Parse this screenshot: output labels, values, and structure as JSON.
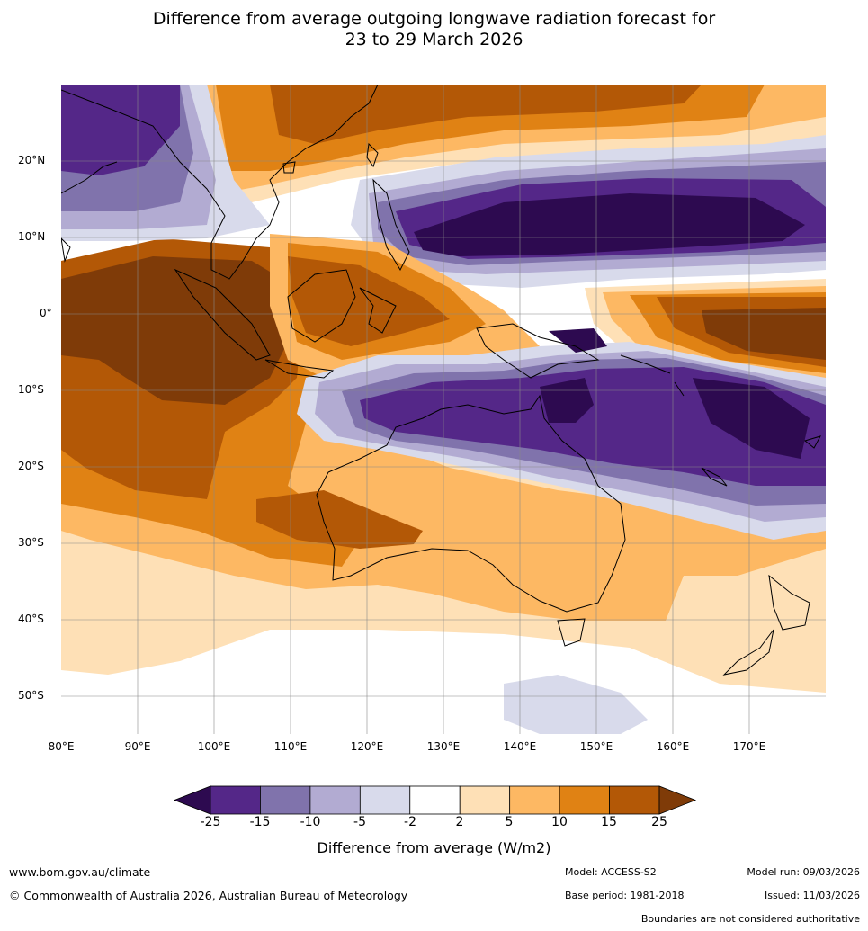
{
  "title_line1": "Difference from average outgoing longwave radiation forecast for",
  "title_line2": "23 to 29 March 2026",
  "map": {
    "lon_labels": [
      "80°E",
      "90°E",
      "100°E",
      "110°E",
      "120°E",
      "130°E",
      "140°E",
      "150°E",
      "160°E",
      "170°E"
    ],
    "lat_labels": [
      "20°N",
      "10°N",
      "0°",
      "10°S",
      "20°S",
      "30°S",
      "40°S",
      "50°S"
    ],
    "palette": {
      "p25": "#2d0a50",
      "p15": "#542788",
      "p10": "#8073ac",
      "p5": "#b2abd2",
      "p2": "#d8daeb",
      "neutral": "#ffffff",
      "o2": "#fee0b6",
      "o5": "#fdb863",
      "o10": "#e08214",
      "o15": "#b35806",
      "o25": "#7f3b08",
      "land_outline": "#000000",
      "grid": "#888888"
    }
  },
  "colorbar": {
    "ticks": [
      "-25",
      "-15",
      "-10",
      "-5",
      "-2",
      "2",
      "5",
      "10",
      "15",
      "25"
    ],
    "colors": [
      "#542788",
      "#8073ac",
      "#b2abd2",
      "#d8daeb",
      "#ffffff",
      "#fee0b6",
      "#fdb863",
      "#e08214",
      "#b35806"
    ],
    "under_color": "#2d0a50",
    "over_color": "#7f3b08",
    "label": "Difference from average (W/m2)"
  },
  "footer": {
    "website": "www.bom.gov.au/climate",
    "copyright": "© Commonwealth of Australia 2026, Australian Bureau of Meteorology",
    "model": "Model: ACCESS-S2",
    "base_period": "Base period: 1981-2018",
    "model_run": "Model run: 09/03/2026",
    "issued": "Issued: 11/03/2026",
    "disclaimer": "Boundaries are not considered authoritative"
  }
}
